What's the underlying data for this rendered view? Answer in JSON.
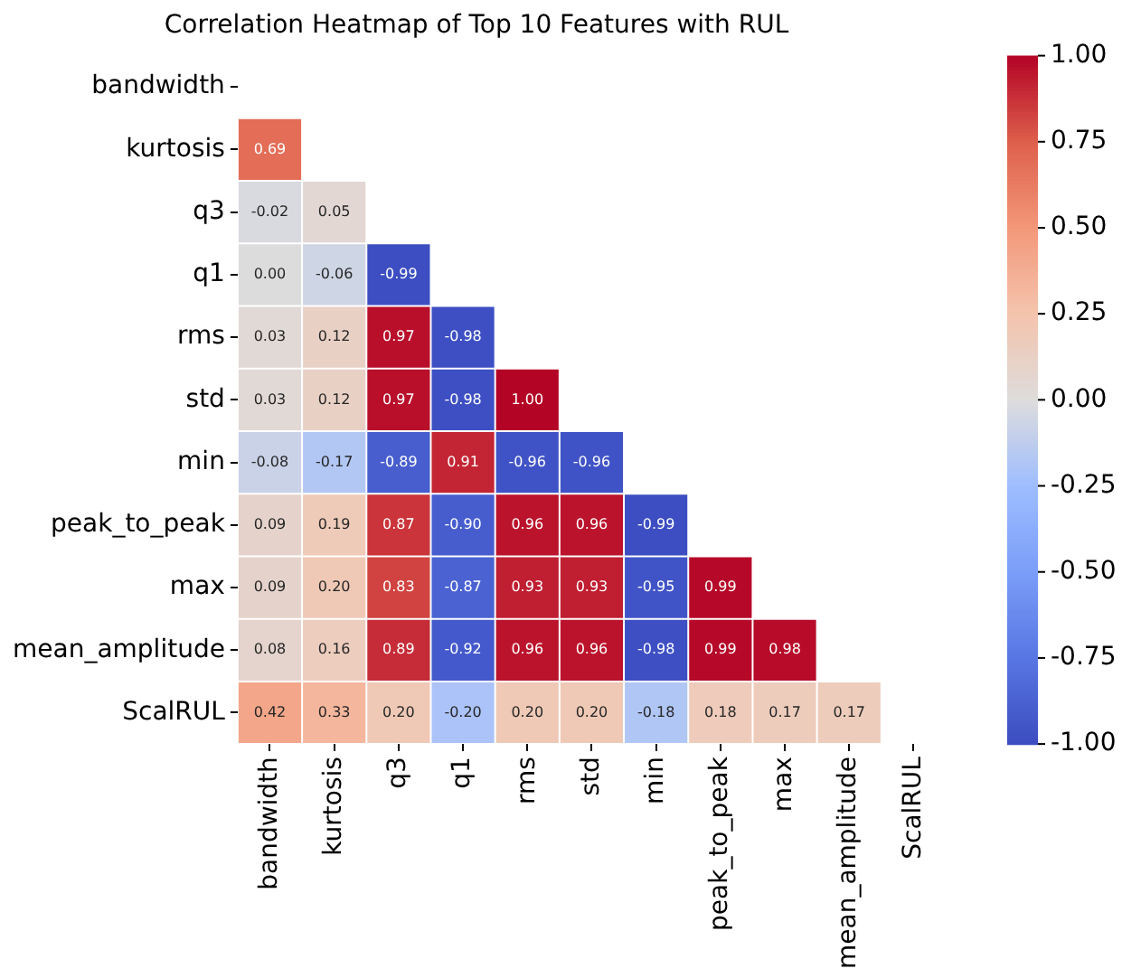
{
  "chart_data": {
    "type": "heatmap",
    "title": "Correlation Heatmap of Top 10 Features with RUL",
    "categories": [
      "bandwidth",
      "kurtosis",
      "q3",
      "q1",
      "rms",
      "std",
      "min",
      "peak_to_peak",
      "max",
      "mean_amplitude",
      "ScalRUL"
    ],
    "y_categories": [
      "bandwidth",
      "kurtosis",
      "q3",
      "q1",
      "rms",
      "std",
      "min",
      "peak_to_peak",
      "max",
      "mean_amplitude",
      "ScalRUL"
    ],
    "cells": [
      [
        null,
        null,
        null,
        null,
        null,
        null,
        null,
        null,
        null,
        null,
        null
      ],
      [
        0.69,
        null,
        null,
        null,
        null,
        null,
        null,
        null,
        null,
        null,
        null
      ],
      [
        -0.02,
        0.05,
        null,
        null,
        null,
        null,
        null,
        null,
        null,
        null,
        null
      ],
      [
        0.0,
        -0.06,
        -0.99,
        null,
        null,
        null,
        null,
        null,
        null,
        null,
        null
      ],
      [
        0.03,
        0.12,
        0.97,
        -0.98,
        null,
        null,
        null,
        null,
        null,
        null,
        null
      ],
      [
        0.03,
        0.12,
        0.97,
        -0.98,
        1.0,
        null,
        null,
        null,
        null,
        null,
        null
      ],
      [
        -0.08,
        -0.17,
        -0.89,
        0.91,
        -0.96,
        -0.96,
        null,
        null,
        null,
        null,
        null
      ],
      [
        0.09,
        0.19,
        0.87,
        -0.9,
        0.96,
        0.96,
        -0.99,
        null,
        null,
        null,
        null
      ],
      [
        0.09,
        0.2,
        0.83,
        -0.87,
        0.93,
        0.93,
        -0.95,
        0.99,
        null,
        null,
        null
      ],
      [
        0.08,
        0.16,
        0.89,
        -0.92,
        0.96,
        0.96,
        -0.98,
        0.99,
        0.98,
        null,
        null
      ],
      [
        0.42,
        0.33,
        0.2,
        -0.2,
        0.2,
        0.2,
        -0.18,
        0.18,
        0.17,
        0.17,
        null
      ]
    ],
    "cell_labels": [
      [
        null,
        null,
        null,
        null,
        null,
        null,
        null,
        null,
        null,
        null,
        null
      ],
      [
        "0.69",
        null,
        null,
        null,
        null,
        null,
        null,
        null,
        null,
        null,
        null
      ],
      [
        "-0.02",
        "0.05",
        null,
        null,
        null,
        null,
        null,
        null,
        null,
        null,
        null
      ],
      [
        "0.00",
        "-0.06",
        "-0.99",
        null,
        null,
        null,
        null,
        null,
        null,
        null,
        null
      ],
      [
        "0.03",
        "0.12",
        "0.97",
        "-0.98",
        null,
        null,
        null,
        null,
        null,
        null,
        null
      ],
      [
        "0.03",
        "0.12",
        "0.97",
        "-0.98",
        "1.00",
        null,
        null,
        null,
        null,
        null,
        null
      ],
      [
        "-0.08",
        "-0.17",
        "-0.89",
        "0.91",
        "-0.96",
        "-0.96",
        null,
        null,
        null,
        null,
        null
      ],
      [
        "0.09",
        "0.19",
        "0.87",
        "-0.90",
        "0.96",
        "0.96",
        "-0.99",
        null,
        null,
        null,
        null
      ],
      [
        "0.09",
        "0.20",
        "0.83",
        "-0.87",
        "0.93",
        "0.93",
        "-0.95",
        "0.99",
        null,
        null,
        null
      ],
      [
        "0.08",
        "0.16",
        "0.89",
        "-0.92",
        "0.96",
        "0.96",
        "-0.98",
        "0.99",
        "0.98",
        null,
        null
      ],
      [
        "0.42",
        "0.33",
        "0.20",
        "-0.20",
        "0.20",
        "0.20",
        "-0.18",
        "0.18",
        "0.17",
        "0.17",
        null
      ]
    ],
    "clim": [
      -1,
      1
    ],
    "cticks": [
      {
        "value": -1,
        "label": "-1.00"
      },
      {
        "value": -0.75,
        "label": "-0.75"
      },
      {
        "value": -0.5,
        "label": "-0.50"
      },
      {
        "value": -0.25,
        "label": "-0.25"
      },
      {
        "value": 0,
        "label": "0.00"
      },
      {
        "value": 0.25,
        "label": "0.25"
      },
      {
        "value": 0.5,
        "label": "0.50"
      },
      {
        "value": 0.75,
        "label": "0.75"
      },
      {
        "value": 1,
        "label": "1.00"
      }
    ]
  }
}
